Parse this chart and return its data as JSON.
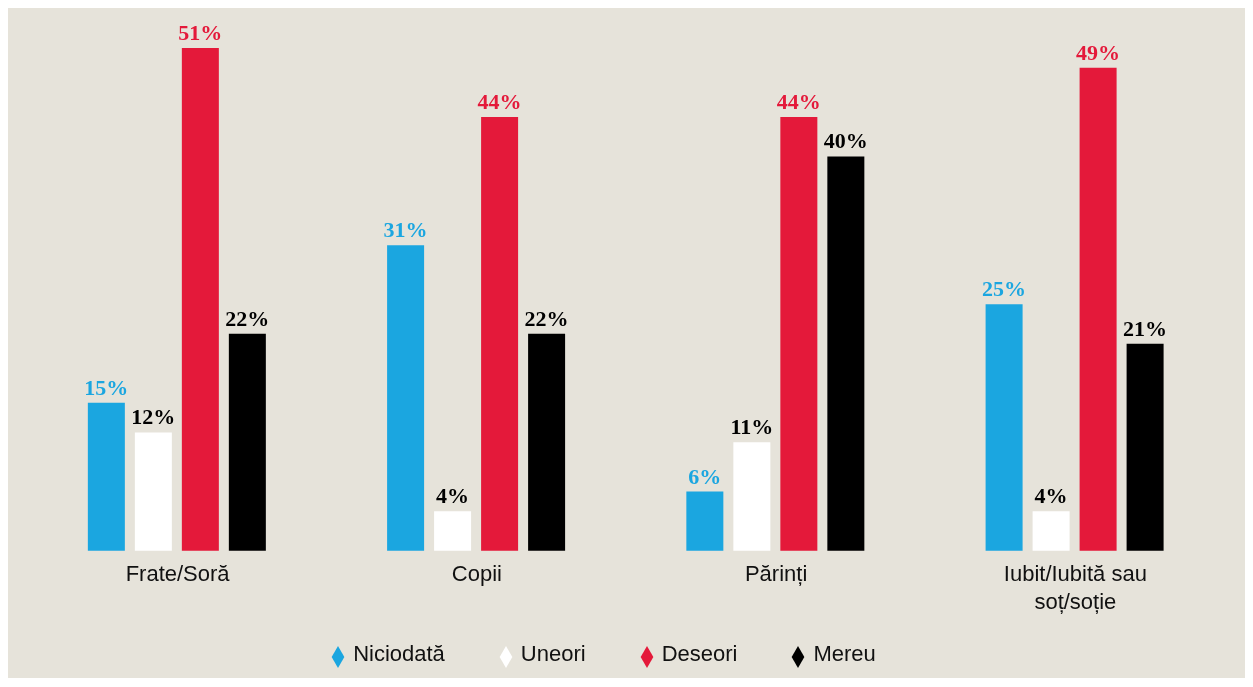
{
  "chart_data": {
    "type": "bar",
    "categories": [
      "Frate/Soră",
      "Copii",
      "Părinți",
      "Iubit/Iubită sau soț/soție"
    ],
    "series": [
      {
        "name": "Niciodată",
        "color": "#1ba6e0",
        "values": [
          15,
          31,
          6,
          25
        ],
        "value_labels": [
          "15%",
          "31%",
          "6%",
          "25%"
        ]
      },
      {
        "name": "Uneori",
        "color": "#ffffff",
        "values": [
          12,
          4,
          11,
          4
        ],
        "value_labels": [
          "12%",
          "4%",
          "11%",
          "4%"
        ]
      },
      {
        "name": "Deseori",
        "color": "#e4193a",
        "values": [
          51,
          44,
          44,
          49
        ],
        "value_labels": [
          "51%",
          "44%",
          "44%",
          "49%"
        ]
      },
      {
        "name": "Mereu",
        "color": "#000000",
        "values": [
          22,
          22,
          40,
          21
        ],
        "value_labels": [
          "22%",
          "22%",
          "40%",
          "21%"
        ]
      }
    ],
    "legend": "bottom",
    "grid": false
  }
}
